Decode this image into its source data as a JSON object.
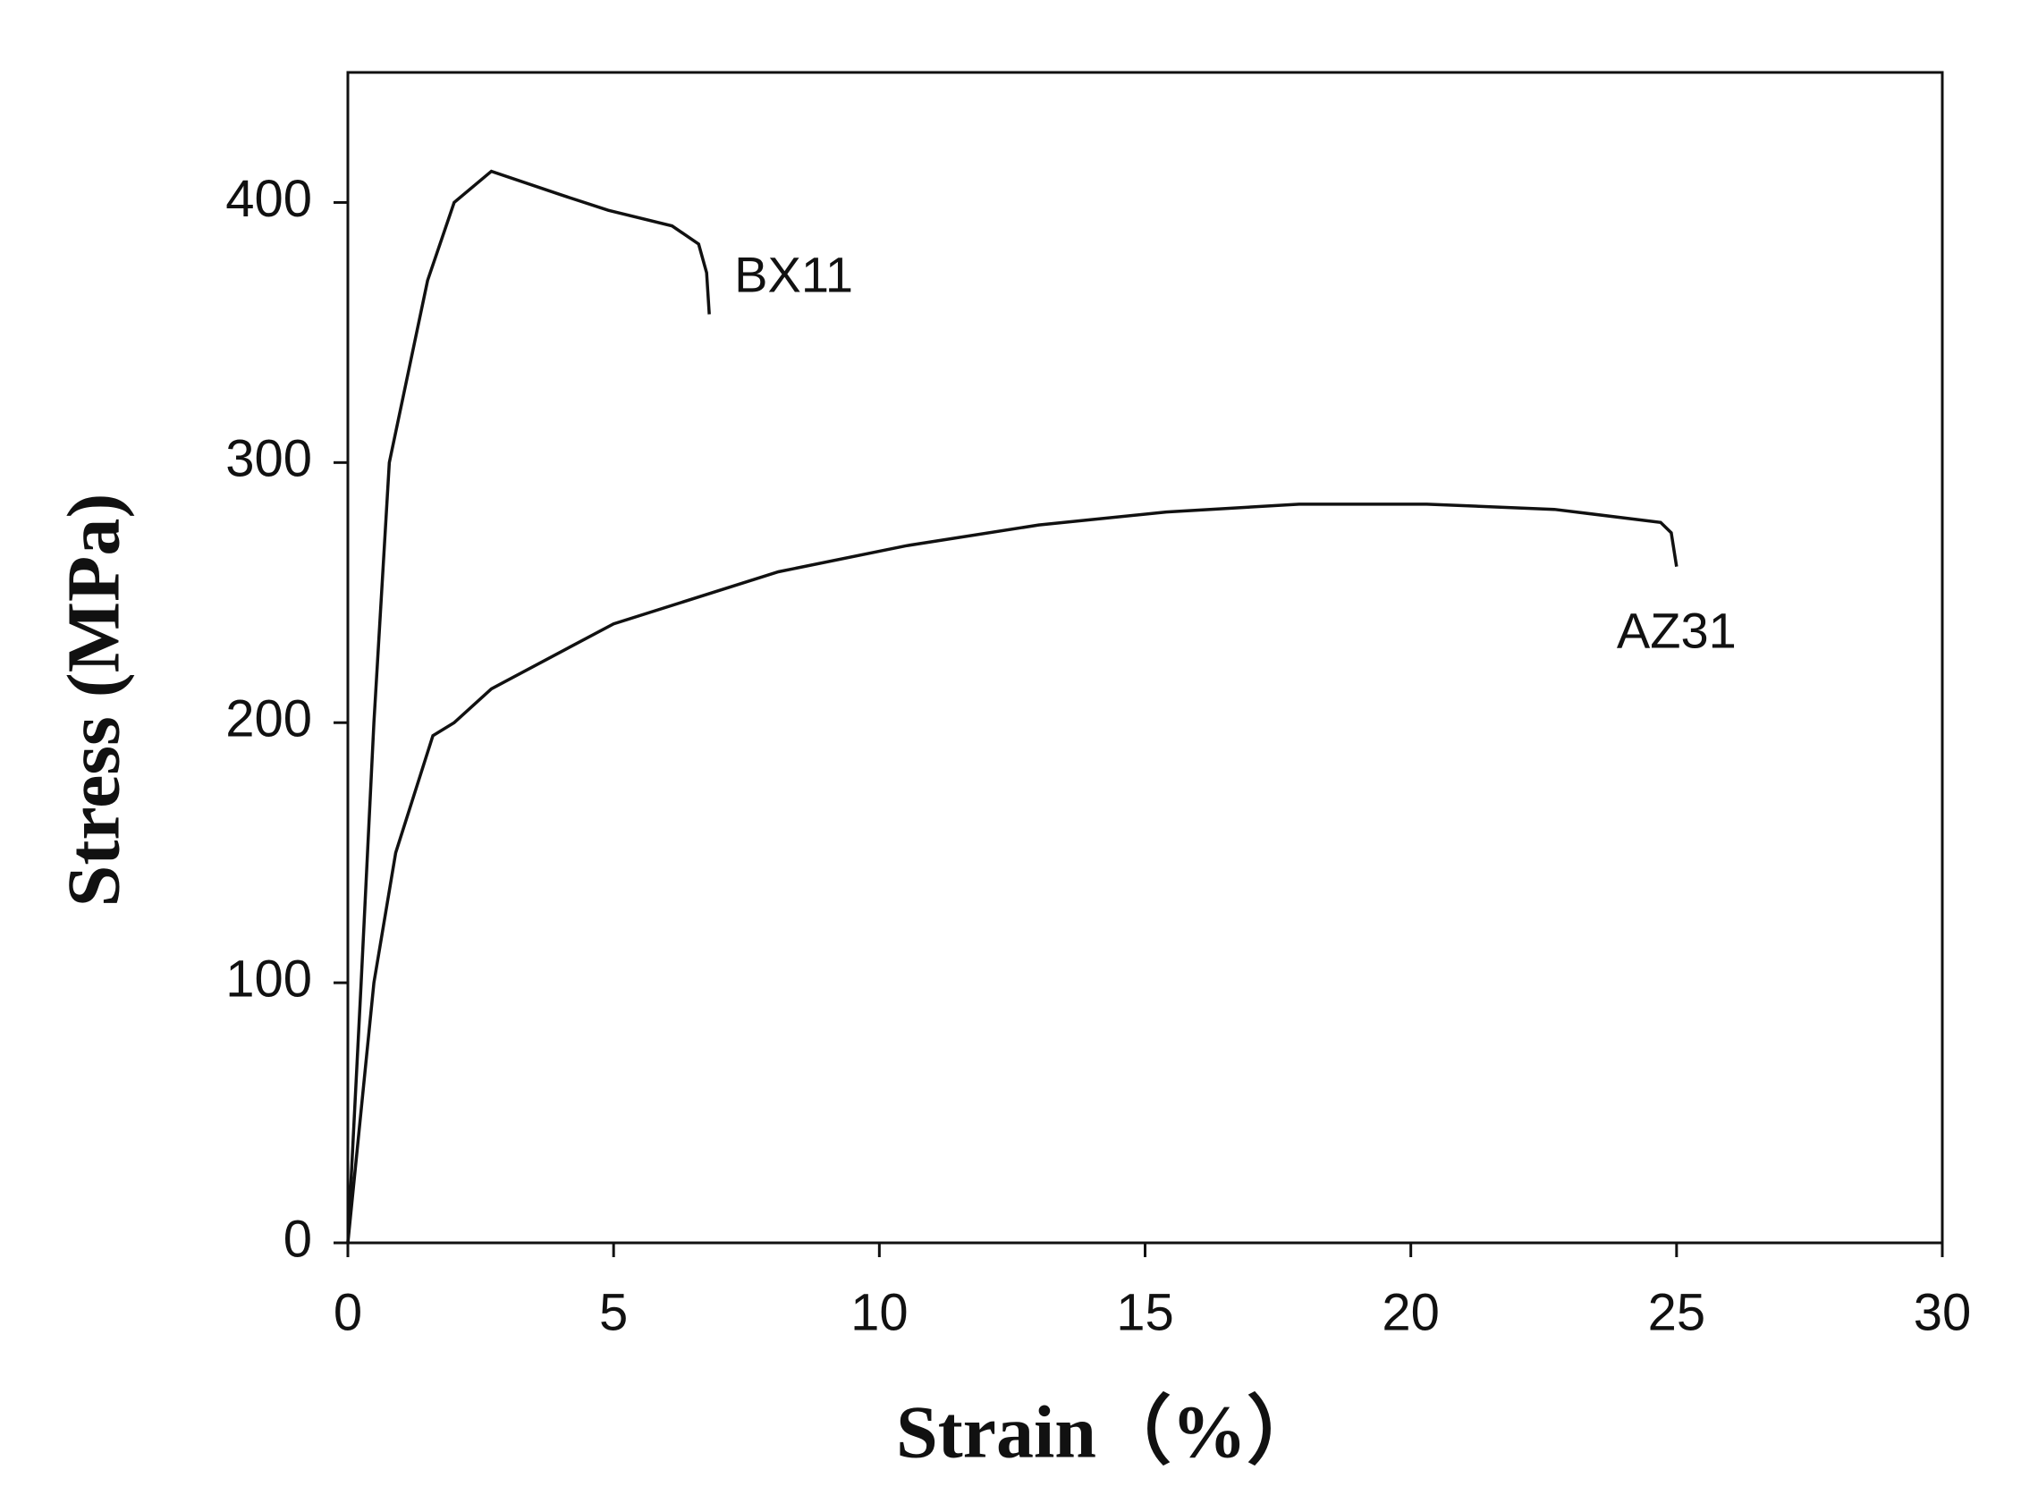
{
  "chart_data": {
    "type": "line",
    "xlabel": "Strain（%）",
    "ylabel": "Stress (MPa)",
    "xlim": [
      0,
      30
    ],
    "ylim": [
      0,
      450
    ],
    "xticks": [
      0,
      5,
      10,
      15,
      20,
      25,
      30
    ],
    "yticks": [
      0,
      100,
      200,
      300,
      400
    ],
    "series": [
      {
        "name": "BX11",
        "color": "#111111",
        "x": [
          0,
          0.25,
          0.49,
          0.78,
          1.5,
          2.0,
          2.7,
          4.0,
          4.9,
          6.1,
          6.6,
          6.75,
          6.8
        ],
        "values": [
          0,
          100,
          200,
          300,
          370,
          400,
          412,
          403,
          397,
          391,
          384,
          373,
          357
        ]
      },
      {
        "name": "AZ31",
        "color": "#111111",
        "x": [
          0,
          0.49,
          0.9,
          1.6,
          2.0,
          2.7,
          5.0,
          8.1,
          10.5,
          13,
          15.4,
          17.9,
          20.3,
          22.7,
          24.7,
          24.9,
          25
        ],
        "values": [
          0,
          100,
          150,
          195,
          200,
          213,
          238,
          258,
          268,
          276,
          281,
          284,
          284,
          282,
          277,
          273,
          260
        ]
      }
    ]
  }
}
